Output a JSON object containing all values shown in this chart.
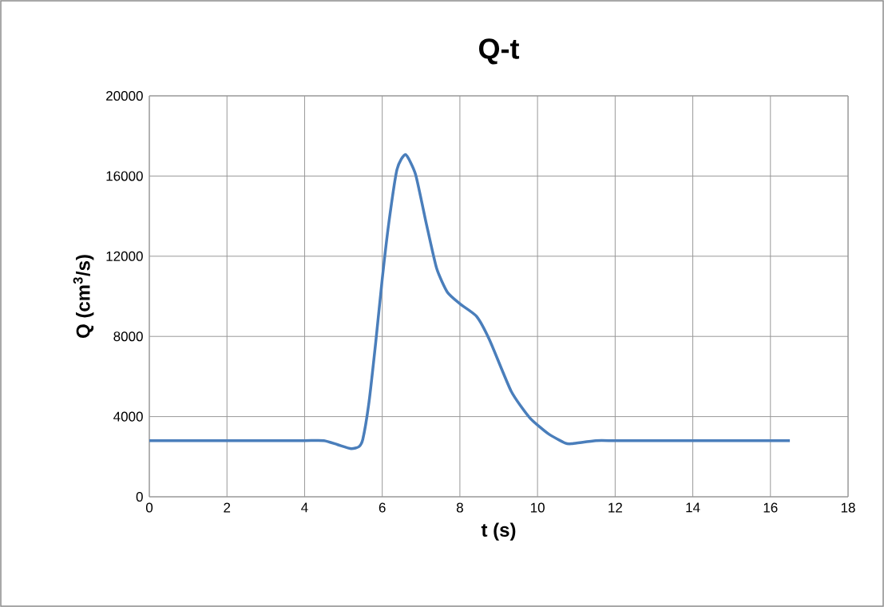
{
  "chart_data": {
    "type": "line",
    "title": "Q-t",
    "xlabel": "t (s)",
    "ylabel": "Q  (cm$^{3}$/s)",
    "xlim": [
      0,
      18
    ],
    "xticks": [
      0,
      2,
      4,
      6,
      8,
      10,
      12,
      14,
      16,
      18
    ],
    "ylim": [
      0,
      20000
    ],
    "yticks": [
      0,
      4000,
      8000,
      12000,
      16000,
      20000
    ],
    "grid": true,
    "series": [
      {
        "color": "#4a7ebb",
        "x": [
          0,
          1,
          2,
          3,
          4,
          4.5,
          4.85,
          5.2,
          5.4,
          5.5,
          5.66,
          5.83,
          6.0,
          6.17,
          6.38,
          6.6,
          6.86,
          7.13,
          7.4,
          7.68,
          8.02,
          8.43,
          8.77,
          9.32,
          9.8,
          10.28,
          10.72,
          10.9,
          11.5,
          12,
          13,
          14,
          15,
          16,
          16.5
        ],
        "values": [
          2800,
          2800,
          2800,
          2800,
          2800,
          2800,
          2600,
          2400,
          2500,
          2870,
          4740,
          7670,
          10870,
          13670,
          16330,
          17070,
          16070,
          13670,
          11400,
          10200,
          9600,
          9000,
          7800,
          5270,
          3940,
          3140,
          2670,
          2650,
          2800,
          2800,
          2800,
          2800,
          2800,
          2800,
          2800
        ]
      }
    ]
  }
}
